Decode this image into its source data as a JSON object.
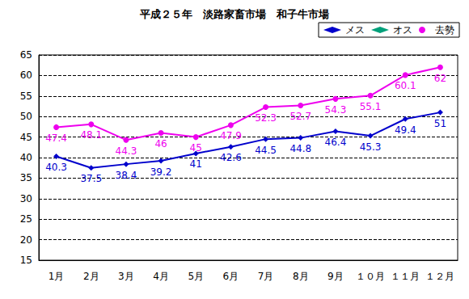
{
  "chart_data": {
    "type": "line",
    "title": "平成２５年　淡路家畜市場　和子牛市場",
    "categories": [
      "1月",
      "2月",
      "3月",
      "4月",
      "5月",
      "6月",
      "7月",
      "8月",
      "9月",
      "１０月",
      "１１月",
      "１２月"
    ],
    "series": [
      {
        "name": "メス",
        "color": "#0000cc",
        "marker": "diamond",
        "values": [
          40.3,
          37.5,
          38.4,
          39.2,
          41,
          42.6,
          44.5,
          44.8,
          46.4,
          45.3,
          49.4,
          51
        ]
      },
      {
        "name": "オス",
        "color": "#00a07a",
        "marker": "diamond",
        "values": [
          null,
          null,
          null,
          null,
          null,
          null,
          null,
          null,
          null,
          null,
          null,
          null
        ]
      },
      {
        "name": "去勢",
        "color": "#ee00ee",
        "marker": "circle",
        "values": [
          47.4,
          48.1,
          44.3,
          46,
          45,
          47.9,
          52.3,
          52.7,
          54.3,
          55.1,
          60.1,
          62
        ]
      }
    ],
    "ylim": [
      15,
      65
    ],
    "yticks": [
      15,
      20,
      25,
      30,
      35,
      40,
      45,
      50,
      55,
      60,
      65
    ],
    "grid": true,
    "legend": "upper right",
    "data_labels": true
  }
}
